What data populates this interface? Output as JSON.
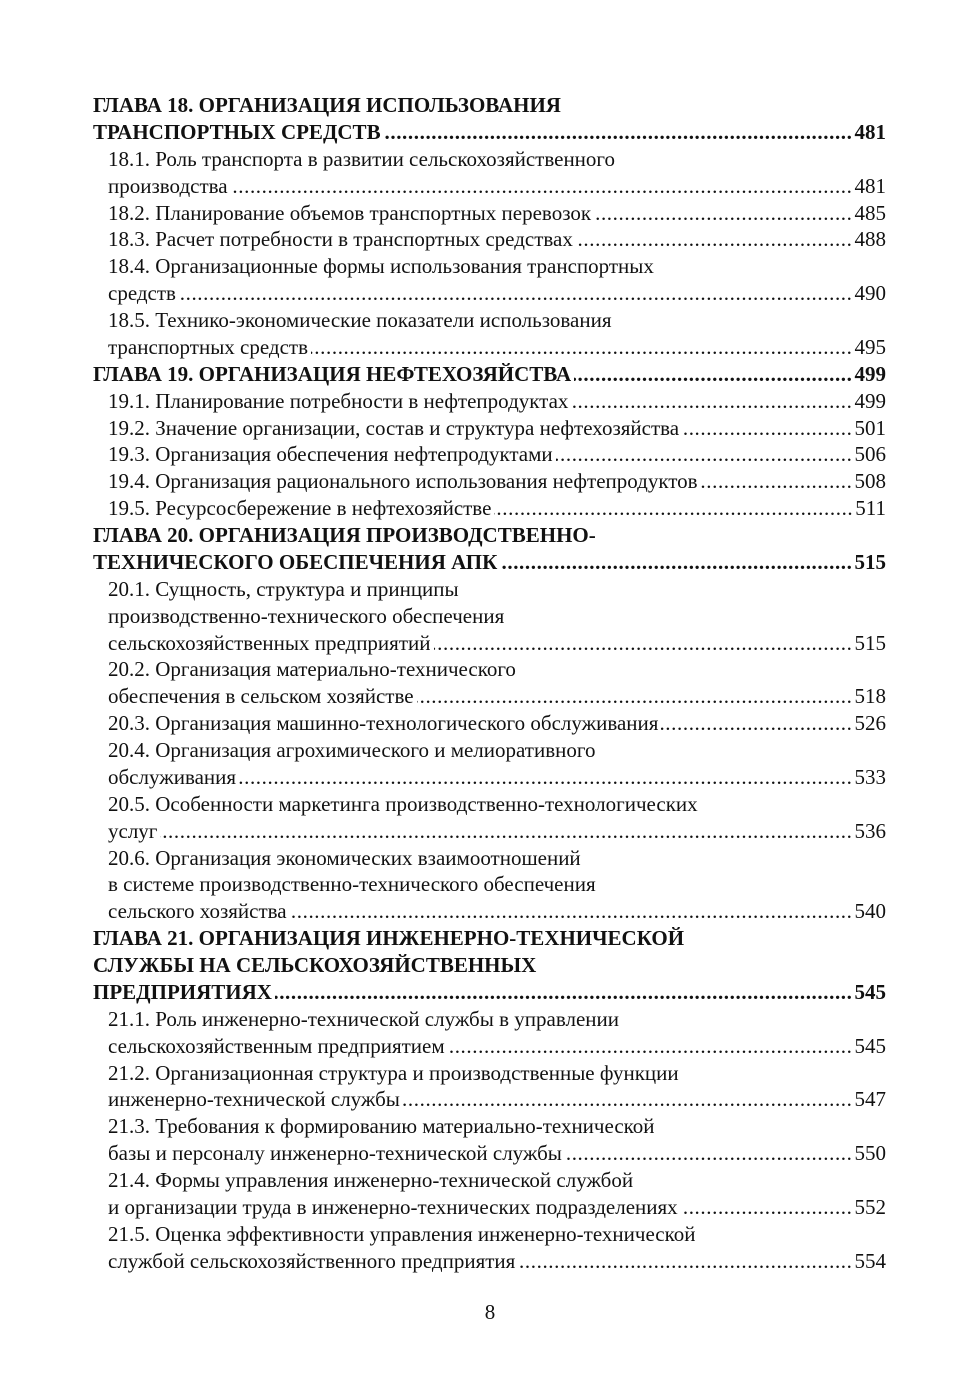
{
  "toc": [
    {
      "type": "chapter",
      "lines": [
        "ГЛАВА 18. ОРГАНИЗАЦИЯ ИСПОЛЬЗОВАНИЯ",
        "ТРАНСПОРТНЫХ СРЕДСТВ"
      ],
      "page": "481"
    },
    {
      "type": "entry",
      "lines": [
        "18.1. Роль транспорта в развитии  сельскохозяйственного",
        "производства"
      ],
      "page": "481"
    },
    {
      "type": "entry",
      "lines": [
        "18.2. Планирование объемов транспортных перевозок"
      ],
      "page": "485"
    },
    {
      "type": "entry",
      "lines": [
        "18.3. Расчет потребности в транспортных средствах"
      ],
      "page": "488"
    },
    {
      "type": "entry",
      "lines": [
        "18.4. Организационные формы использования транспортных",
        "средств"
      ],
      "page": "490"
    },
    {
      "type": "entry",
      "lines": [
        "18.5. Технико-экономические показатели использования",
        "транспортных средств"
      ],
      "page": "495"
    },
    {
      "type": "chapter",
      "lines": [
        "ГЛАВА 19. ОРГАНИЗАЦИЯ НЕФТЕХОЗЯЙСТВА"
      ],
      "page": "499"
    },
    {
      "type": "entry",
      "lines": [
        "19.1. Планирование потребности в нефтепродуктах"
      ],
      "page": "499"
    },
    {
      "type": "entry",
      "lines": [
        "19.2. Значение организации, состав и структура нефтехозяйства"
      ],
      "page": "501"
    },
    {
      "type": "entry",
      "lines": [
        "19.3. Организация обеспечения нефтепродуктами"
      ],
      "page": "506"
    },
    {
      "type": "entry",
      "lines": [
        "19.4. Организация рационального использования нефтепродуктов"
      ],
      "page": "508"
    },
    {
      "type": "entry",
      "lines": [
        "19.5. Ресурсосбережение в нефтехозяйстве"
      ],
      "page": "511"
    },
    {
      "type": "chapter",
      "lines": [
        "ГЛАВА 20. ОРГАНИЗАЦИЯ ПРОИЗВОДСТВЕННО-",
        "ТЕХНИЧЕСКОГО ОБЕСПЕЧЕНИЯ АПК"
      ],
      "page": "515"
    },
    {
      "type": "entry",
      "lines": [
        "20.1. Сущность, структура и принципы",
        "производственно-технического обеспечения",
        "сельскохозяйственных предприятий"
      ],
      "page": "515"
    },
    {
      "type": "entry",
      "lines": [
        "20.2. Организация материально-технического",
        "обеспечения в сельском хозяйстве"
      ],
      "page": "518"
    },
    {
      "type": "entry",
      "lines": [
        "20.3. Организация машинно-технологического обслуживания"
      ],
      "page": "526"
    },
    {
      "type": "entry",
      "lines": [
        "20.4. Организация агрохимического и мелиоративного",
        "обслуживания"
      ],
      "page": "533"
    },
    {
      "type": "entry",
      "lines": [
        "20.5. Особенности маркетинга  производственно-технологических",
        "услуг"
      ],
      "page": "536"
    },
    {
      "type": "entry",
      "lines": [
        "20.6. Организация экономических взаимоотношений",
        "в системе производственно-технического обеспечения",
        "сельского хозяйства"
      ],
      "page": "540"
    },
    {
      "type": "chapter",
      "lines": [
        "ГЛАВА 21. ОРГАНИЗАЦИЯ ИНЖЕНЕРНО-ТЕХНИЧЕСКОЙ",
        "СЛУЖБЫ НА СЕЛЬСКОХОЗЯЙСТВЕННЫХ",
        "ПРЕДПРИЯТИЯХ"
      ],
      "page": "545"
    },
    {
      "type": "entry",
      "lines": [
        "21.1. Роль инженерно-технической службы в управлении",
        "сельскохозяйственным предприятием"
      ],
      "page": "545"
    },
    {
      "type": "entry",
      "lines": [
        "21.2. Организационная структура и производственные функции",
        "инженерно-технической службы"
      ],
      "page": "547"
    },
    {
      "type": "entry",
      "lines": [
        "21.3. Требования к формированию материально-технической",
        "базы и персоналу инженерно-технической службы"
      ],
      "page": "550"
    },
    {
      "type": "entry",
      "lines": [
        "21.4. Формы управления инженерно-технической службой",
        "и организации труда в инженерно-технических подразделениях"
      ],
      "page": "552"
    },
    {
      "type": "entry",
      "lines": [
        "21.5. Оценка эффективности управления инженерно-технической",
        "службой сельскохозяйственного предприятия"
      ],
      "page": "554"
    }
  ],
  "page_number": "8"
}
